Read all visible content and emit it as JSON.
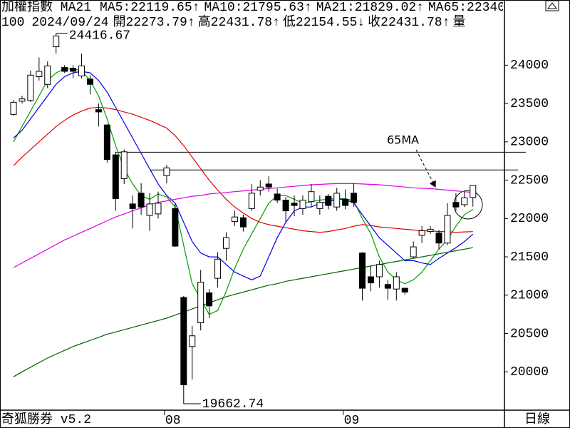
{
  "chart_data": {
    "type": "candlestick",
    "title": "加權指數 MA21",
    "categories": [
      null,
      null,
      null,
      null,
      null,
      null,
      null,
      null,
      null,
      null,
      null,
      null,
      null,
      null,
      null,
      null,
      null,
      null,
      "08",
      null,
      null,
      null,
      null,
      null,
      null,
      null,
      null,
      null,
      null,
      null,
      null,
      null,
      null,
      null,
      null,
      null,
      null,
      null,
      null,
      "09",
      null,
      null,
      null,
      null,
      null,
      null,
      null,
      null,
      null,
      null,
      null,
      null,
      null,
      null,
      null
    ],
    "open": [
      23358,
      23530,
      23540,
      23850,
      23750,
      24240,
      23970,
      23960,
      23860,
      23820,
      23420,
      23220,
      22830,
      22520,
      22190,
      22330,
      22040,
      22060,
      22560,
      22130,
      20970,
      20330,
      20640,
      21030,
      21220,
      21610,
      21960,
      22010,
      22130,
      22370,
      22450,
      22320,
      22240,
      22200,
      22130,
      22220,
      22130,
      22290,
      22150,
      22250,
      22330,
      21550,
      21240,
      21240,
      21140,
      21080,
      21090,
      21500,
      21780,
      21830,
      21810,
      21680,
      22210,
      22180,
      22273.79
    ],
    "high": [
      23544,
      23600,
      23930,
      24100,
      24050,
      24416.67,
      24000,
      24000,
      24150,
      23870,
      23500,
      23230,
      22870,
      22900,
      22300,
      22460,
      22330,
      22350,
      22700,
      22200,
      20990,
      20600,
      21330,
      21080,
      21560,
      21820,
      22100,
      22050,
      22450,
      22500,
      22550,
      22390,
      22280,
      22300,
      22300,
      22450,
      22300,
      22320,
      22400,
      22380,
      22460,
      21560,
      21380,
      21450,
      21200,
      21300,
      21100,
      21700,
      21900,
      21900,
      21850,
      22200,
      22330,
      22350,
      22431.78
    ],
    "low": [
      23340,
      23500,
      23520,
      23800,
      23700,
      24150,
      23900,
      23830,
      23830,
      23620,
      23200,
      22730,
      22100,
      22450,
      21870,
      22050,
      21840,
      22000,
      22460,
      21630,
      19662.74,
      19900,
      20540,
      20700,
      21100,
      21450,
      21900,
      21830,
      22100,
      22300,
      22350,
      22200,
      21960,
      22030,
      22050,
      22150,
      22050,
      22120,
      22100,
      22120,
      22150,
      20930,
      21050,
      21100,
      20940,
      20930,
      21010,
      21480,
      21680,
      21800,
      21600,
      21650,
      22100,
      22150,
      22154.55
    ],
    "close": [
      23516,
      23560,
      23870,
      23920,
      23990,
      24381,
      23920,
      23920,
      23990,
      23750,
      23390,
      22770,
      22260,
      22870,
      22130,
      22150,
      22190,
      22200,
      22660,
      21640,
      19830,
      20470,
      21170,
      20860,
      21470,
      21750,
      22020,
      21890,
      22330,
      22410,
      22410,
      22240,
      22100,
      22170,
      22240,
      22350,
      22210,
      22170,
      22330,
      22170,
      22210,
      21090,
      21160,
      21400,
      21090,
      21240,
      21040,
      21630,
      21840,
      21860,
      21680,
      22040,
      22150,
      22270,
      22431.78
    ],
    "series": [
      {
        "name": "MA5",
        "color": "#00a000",
        "arrow": "↑",
        "values": [
          23000,
          23200,
          23400,
          23600,
          23800,
          23900,
          23950,
          23950,
          23930,
          23800,
          23600,
          23300,
          22950,
          22650,
          22450,
          22300,
          22250,
          22320,
          22280,
          22150,
          21650,
          21150,
          20950,
          20750,
          20800,
          21050,
          21350,
          21600,
          21800,
          22000,
          22200,
          22300,
          22300,
          22250,
          22200,
          22220,
          22240,
          22250,
          22260,
          22260,
          22230,
          22000,
          21800,
          21500,
          21300,
          21200,
          21150,
          21200,
          21300,
          21450,
          21600,
          21720,
          21900,
          22050,
          22119.65
        ]
      },
      {
        "name": "MA10",
        "color": "#0000e0",
        "arrow": "↑",
        "values": [
          23050,
          23150,
          23300,
          23450,
          23600,
          23750,
          23850,
          23900,
          23920,
          23900,
          23800,
          23650,
          23450,
          23250,
          23050,
          22850,
          22650,
          22450,
          22300,
          22200,
          21950,
          21700,
          21550,
          21500,
          21500,
          21400,
          21300,
          21250,
          21200,
          21250,
          21500,
          21750,
          21950,
          22100,
          22150,
          22150,
          22200,
          22220,
          22250,
          22250,
          22200,
          22050,
          21900,
          21750,
          21650,
          21550,
          21450,
          21450,
          21420,
          21400,
          21480,
          21550,
          21620,
          21700,
          21795.63
        ]
      },
      {
        "name": "MA21",
        "color": "#e00000",
        "arrow": "↑",
        "values": [
          22690,
          22800,
          22900,
          23000,
          23100,
          23200,
          23280,
          23350,
          23400,
          23440,
          23450,
          23440,
          23420,
          23390,
          23360,
          23320,
          23280,
          23230,
          23180,
          23080,
          22950,
          22800,
          22650,
          22500,
          22370,
          22250,
          22150,
          22070,
          22000,
          21950,
          21920,
          21900,
          21880,
          21860,
          21840,
          21830,
          21820,
          21830,
          21850,
          21870,
          21900,
          21920,
          21910,
          21890,
          21880,
          21870,
          21860,
          21850,
          21840,
          21840,
          21830,
          21830,
          21820,
          21825,
          21829.02
        ]
      },
      {
        "name": "MA65",
        "color": "#e000e0",
        "arrow": "↑",
        "values": [
          21360,
          21420,
          21480,
          21540,
          21600,
          21660,
          21720,
          21770,
          21820,
          21870,
          21920,
          21970,
          22020,
          22060,
          22100,
          22140,
          22180,
          22210,
          22230,
          22250,
          22270,
          22290,
          22300,
          22320,
          22330,
          22340,
          22350,
          22360,
          22370,
          22380,
          22390,
          22400,
          22410,
          22420,
          22430,
          22440,
          22445,
          22450,
          22455,
          22455,
          22455,
          22450,
          22445,
          22440,
          22430,
          22420,
          22410,
          22400,
          22395,
          22390,
          22380,
          22370,
          22360,
          22350,
          22340
        ]
      },
      {
        "color": "#006400",
        "values": [
          19935,
          20000,
          20060,
          20120,
          20180,
          20230,
          20280,
          20330,
          20370,
          20410,
          20450,
          20490,
          20520,
          20550,
          20580,
          20610,
          20640,
          20670,
          20700,
          20740,
          20780,
          20820,
          20860,
          20900,
          20940,
          20980,
          21010,
          21040,
          21070,
          21100,
          21130,
          21150,
          21180,
          21200,
          21220,
          21240,
          21260,
          21280,
          21300,
          21320,
          21340,
          21360,
          21380,
          21400,
          21420,
          21440,
          21460,
          21480,
          21500,
          21520,
          21540,
          21560,
          21580,
          21600,
          21620
        ]
      }
    ],
    "legend_separator": ":",
    "up_color": "#ffffff",
    "down_color": "#000000",
    "ylim": [
      19500,
      24450
    ],
    "yticks": [
      20000,
      20500,
      21000,
      21500,
      22000,
      22500,
      23000,
      23500,
      24000
    ],
    "grid": false,
    "reference_lines": [
      22865,
      22633
    ],
    "annotation": "65MA",
    "info": {
      "prefix": "100",
      "date": "2024/09/24",
      "fields": [
        {
          "label": "開",
          "arrow": "↑"
        },
        {
          "label": "高",
          "arrow": "↑"
        },
        {
          "label": "低",
          "arrow": "↓"
        },
        {
          "label": "收",
          "arrow": "↑"
        }
      ],
      "volume_label": "量"
    },
    "footer": {
      "left": "奇狐勝券 v5.2",
      "right": "日線"
    }
  }
}
